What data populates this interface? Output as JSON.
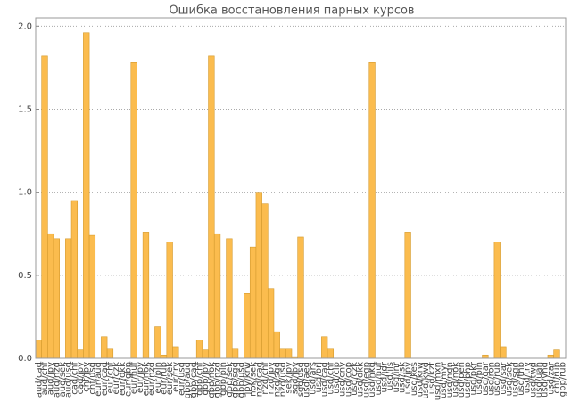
{
  "chart_data": {
    "type": "bar",
    "title": "Ошибка восстановления парных курсов",
    "categories": [
      "aud/cad",
      "aud/chf",
      "aud/jpy",
      "aud/nzd",
      "aud/sek",
      "aud/usd",
      "cad/chf",
      "cad/jpy",
      "chf/jpy",
      "chf/usd",
      "eur/aud",
      "eur/cad",
      "eur/chf",
      "eur/czk",
      "eur/dkk",
      "eur/gbp",
      "eur/huf",
      "eur/jpy",
      "eur/nok",
      "eur/nzd",
      "eur/pln",
      "eur/rub",
      "eur/sek",
      "eur/try",
      "eur/usd",
      "gbp/aud",
      "gbp/cad",
      "gbp/chf",
      "gbp/jpy",
      "gbp/nok",
      "gbp/nzd",
      "gbp/pln",
      "gbp/sek",
      "gbp/sgd",
      "gbp/usd",
      "jpy/krw",
      "nok/sek",
      "nzd/cad",
      "nzd/chf",
      "nzd/jpy",
      "nzd/sgd",
      "nzd/usd",
      "sek/jpy",
      "sgd/jpy",
      "sgd/usd",
      "usd/aed",
      "usd/ars",
      "usd/brl",
      "usd/cad",
      "usd/chf",
      "usd/clp",
      "usd/cny",
      "usd/cop",
      "usd/czk",
      "usd/dkk",
      "usd/egp",
      "usd/hkd",
      "usd/huf",
      "usd/idr",
      "usd/ils",
      "usd/inr",
      "usd/isk",
      "usd/jpy",
      "usd/kes",
      "usd/krw",
      "usd/kwd",
      "usd/kzt",
      "usd/mxn",
      "usd/myr",
      "usd/ngn",
      "usd/nok",
      "usd/pen",
      "usd/php",
      "usd/pkr",
      "usd/pln",
      "usd/qar",
      "usd/ron",
      "usd/rub",
      "usd/sar",
      "usd/sek",
      "usd/sgd",
      "usd/thb",
      "usd/try",
      "usd/twd",
      "usd/uah",
      "usd/vnd",
      "usd/zar",
      "chf/rub",
      "gbp/rub"
    ],
    "values": [
      0.11,
      1.82,
      0.75,
      0.72,
      0,
      0.72,
      0.95,
      0.05,
      1.96,
      0.74,
      0,
      0.13,
      0.06,
      0,
      0,
      0,
      1.78,
      0,
      0.76,
      0,
      0.19,
      0.02,
      0.7,
      0.07,
      0,
      0,
      0,
      0.11,
      0.05,
      1.82,
      0.75,
      0,
      0.72,
      0.06,
      0,
      0.39,
      0.67,
      1.0,
      0.93,
      0.42,
      0.16,
      0.06,
      0.06,
      0.01,
      0.73,
      0,
      0,
      0,
      0.13,
      0.06,
      0,
      0,
      0,
      0,
      0,
      0,
      1.78,
      0,
      0,
      0,
      0,
      0,
      0.76,
      0,
      0,
      0,
      0,
      0,
      0,
      0,
      0,
      0,
      0,
      0,
      0,
      0.02,
      0,
      0.7,
      0.07,
      0,
      0,
      0,
      0,
      0,
      0,
      0,
      0.02,
      0.05,
      0
    ],
    "color": "#fbbc4e",
    "edge_color": "#d49a2e",
    "ylim": [
      0,
      2.05
    ],
    "yticks": [
      {
        "value": 0,
        "label": "0.0"
      },
      {
        "value": 0.5,
        "label": "0.5"
      },
      {
        "value": 1,
        "label": "1.0"
      },
      {
        "value": 1.5,
        "label": "1.5"
      },
      {
        "value": 2,
        "label": "2.0"
      }
    ],
    "grid": true
  }
}
